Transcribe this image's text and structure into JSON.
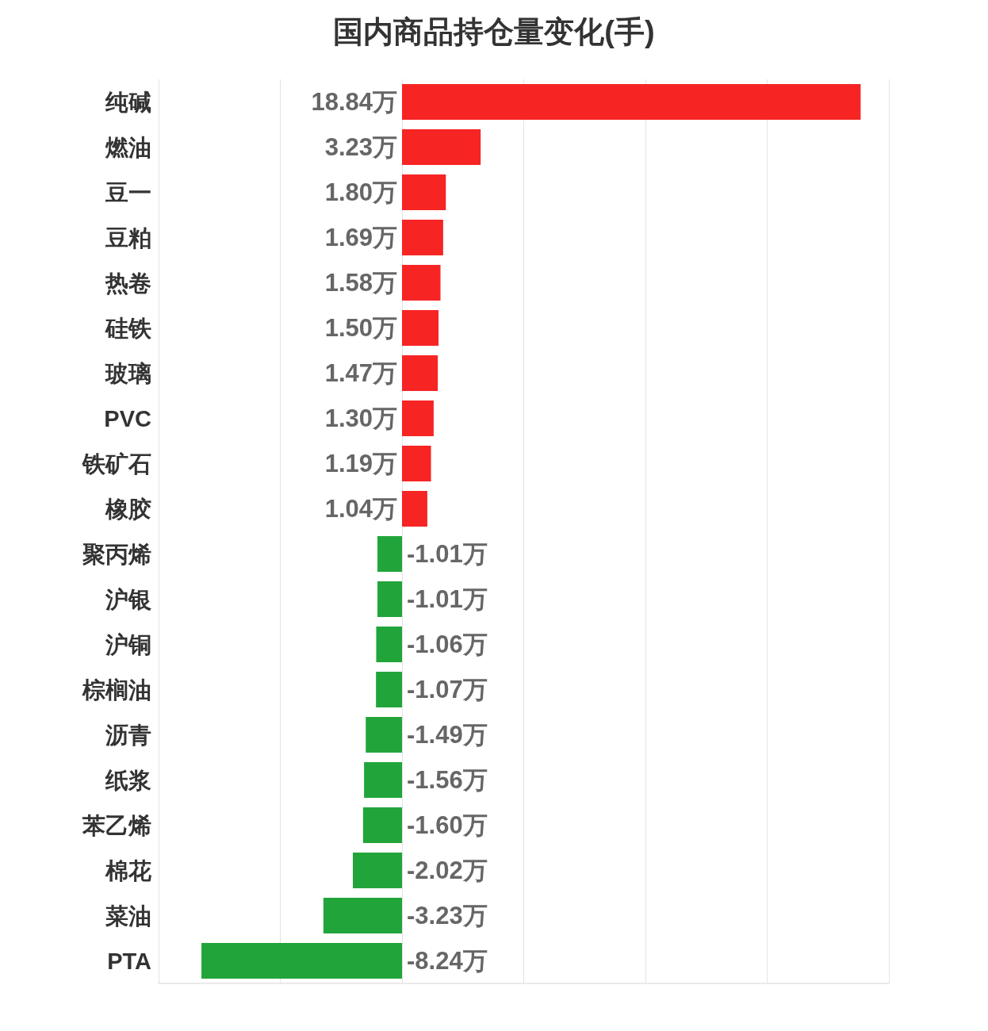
{
  "chart_data": {
    "type": "bar",
    "title": "国内商品持仓量变化(手)",
    "orientation": "horizontal",
    "categories": [
      "纯碱",
      "燃油",
      "豆一",
      "豆粕",
      "热卷",
      "硅铁",
      "玻璃",
      "PVC",
      "铁矿石",
      "橡胶",
      "聚丙烯",
      "沪银",
      "沪铜",
      "棕榈油",
      "沥青",
      "纸浆",
      "苯乙烯",
      "棉花",
      "菜油",
      "PTA"
    ],
    "values": [
      18.84,
      3.23,
      1.8,
      1.69,
      1.58,
      1.5,
      1.47,
      1.3,
      1.19,
      1.04,
      -1.01,
      -1.01,
      -1.06,
      -1.07,
      -1.49,
      -1.56,
      -1.6,
      -2.02,
      -3.23,
      -8.24
    ],
    "value_labels": [
      "18.84万",
      "3.23万",
      "1.80万",
      "1.69万",
      "1.58万",
      "1.50万",
      "1.47万",
      "1.30万",
      "1.19万",
      "1.04万",
      "-1.01万",
      "-1.01万",
      "-1.06万",
      "-1.07万",
      "-1.49万",
      "-1.56万",
      "-1.60万",
      "-2.02万",
      "-3.23万",
      "-8.24万"
    ],
    "colors": [
      "#f72424",
      "#f72424",
      "#f72424",
      "#f72424",
      "#f72424",
      "#f72424",
      "#f72424",
      "#f72424",
      "#f72424",
      "#f72424",
      "#21a53a",
      "#21a53a",
      "#21a53a",
      "#21a53a",
      "#21a53a",
      "#21a53a",
      "#21a53a",
      "#21a53a",
      "#21a53a",
      "#21a53a"
    ],
    "xlim": [
      -10,
      20
    ],
    "xticks": [
      {
        "value": -10,
        "label": null
      },
      {
        "value": -5,
        "label": null
      },
      {
        "value": 0,
        "label": null
      },
      {
        "value": 5,
        "label": null
      },
      {
        "value": 10,
        "label": null
      },
      {
        "value": 15,
        "label": null
      },
      {
        "value": 20,
        "label": null
      }
    ],
    "grid": "x",
    "tick_labels": "y"
  }
}
